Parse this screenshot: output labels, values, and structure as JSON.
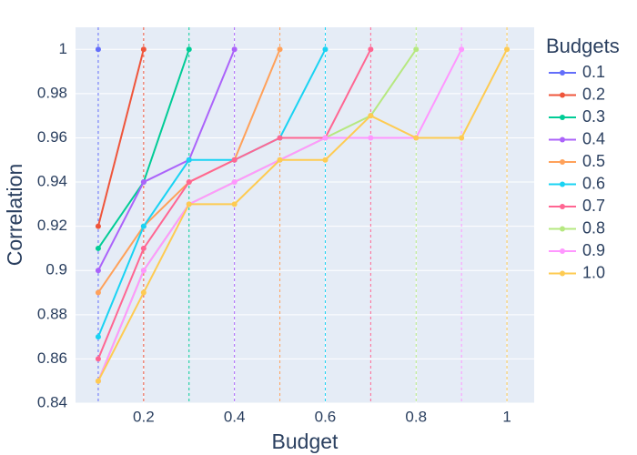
{
  "chart_data": {
    "type": "line",
    "xlabel": "Budget",
    "ylabel": "Correlation",
    "legend_title": "Budgets",
    "legend": "right",
    "xlim": [
      0.05,
      1.06
    ],
    "xticks": [
      0.2,
      0.4,
      0.6,
      0.8,
      1
    ],
    "ylim": [
      0.84,
      1.01
    ],
    "yticks": [
      0.84,
      0.86,
      0.88,
      0.9,
      0.92,
      0.94,
      0.96,
      0.98,
      1
    ],
    "grid": true,
    "vlines": true,
    "series": [
      {
        "name": "0.1",
        "color": "#636efa",
        "x": [
          0.1
        ],
        "values": [
          1
        ]
      },
      {
        "name": "0.2",
        "color": "#EF553B",
        "x": [
          0.1,
          0.2
        ],
        "values": [
          0.92,
          1
        ]
      },
      {
        "name": "0.3",
        "color": "#00cc96",
        "x": [
          0.1,
          0.2,
          0.3
        ],
        "values": [
          0.91,
          0.94,
          1
        ]
      },
      {
        "name": "0.4",
        "color": "#ab63fa",
        "x": [
          0.1,
          0.2,
          0.3,
          0.4
        ],
        "values": [
          0.9,
          0.94,
          0.95,
          1
        ]
      },
      {
        "name": "0.5",
        "color": "#FFA15A",
        "x": [
          0.1,
          0.2,
          0.3,
          0.4,
          0.5
        ],
        "values": [
          0.89,
          0.92,
          0.94,
          0.95,
          1
        ]
      },
      {
        "name": "0.6",
        "color": "#19d3f3",
        "x": [
          0.1,
          0.2,
          0.3,
          0.4,
          0.5,
          0.6
        ],
        "values": [
          0.87,
          0.92,
          0.95,
          0.95,
          0.96,
          1
        ]
      },
      {
        "name": "0.7",
        "color": "#FF6692",
        "x": [
          0.1,
          0.2,
          0.3,
          0.4,
          0.5,
          0.6,
          0.7
        ],
        "values": [
          0.86,
          0.91,
          0.94,
          0.95,
          0.96,
          0.96,
          1
        ]
      },
      {
        "name": "0.8",
        "color": "#B6E880",
        "x": [
          0.1,
          0.2,
          0.3,
          0.4,
          0.5,
          0.6,
          0.7,
          0.8
        ],
        "values": [
          0.85,
          0.9,
          0.93,
          0.94,
          0.95,
          0.96,
          0.97,
          1
        ]
      },
      {
        "name": "0.9",
        "color": "#FF97FF",
        "x": [
          0.1,
          0.2,
          0.3,
          0.4,
          0.5,
          0.6,
          0.7,
          0.8,
          0.9
        ],
        "values": [
          0.85,
          0.9,
          0.93,
          0.94,
          0.95,
          0.96,
          0.96,
          0.96,
          1
        ]
      },
      {
        "name": "1.0",
        "color": "#FECB52",
        "x": [
          0.1,
          0.2,
          0.3,
          0.4,
          0.5,
          0.6,
          0.7,
          0.8,
          0.9,
          1.0
        ],
        "values": [
          0.85,
          0.89,
          0.93,
          0.93,
          0.95,
          0.95,
          0.97,
          0.96,
          0.96,
          1
        ]
      }
    ]
  }
}
